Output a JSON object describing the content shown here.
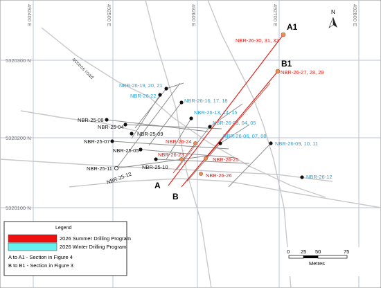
{
  "grid_labels": {
    "eastings": [
      "492400 E",
      "492500 E",
      "492600 E",
      "492700 E",
      "492800 E"
    ],
    "northings": [
      "5320300 N",
      "5320200 N",
      "5320100 N"
    ]
  },
  "north_arrow": "N",
  "road_label": "access road",
  "sections": {
    "a": "A",
    "a1": "A1",
    "b": "B",
    "b1": "B1"
  },
  "holes": {
    "summer": [
      "NBR-26-30, 31, 32",
      "NBR-26-27, 28, 29",
      "NBR-26-24",
      "NBR-26-23",
      "NBR-26-25",
      "NBR-26-26"
    ],
    "winter": [
      "NBR-26-19, 20, 21",
      "NBR-26-22",
      "NBR-26-16, 17, 18",
      "NBR-26-13, 14, 15",
      "NBR-26-03, 04, 05",
      "NBR-26-06, 07, 08",
      "NBR-26-09, 10, 11",
      "NBR-26-12"
    ],
    "historic": [
      "NBR-25-08",
      "NBR-25-04",
      "NBR-25-09",
      "NBR-25-07",
      "NBR-25-05",
      "NBR-25-10",
      "NBR-25-11",
      "NBR-25-12"
    ]
  },
  "legend": {
    "title": "Legend",
    "items": [
      "2026 Summer Drilling Program",
      "2026 Winter Drilling Program",
      "A to A1 - Section in Figure 4",
      "B to B1 - Section in Figure 3"
    ]
  },
  "scale_bar": {
    "ticks": [
      "0",
      "25",
      "50",
      "75"
    ],
    "unit": "Metres"
  }
}
